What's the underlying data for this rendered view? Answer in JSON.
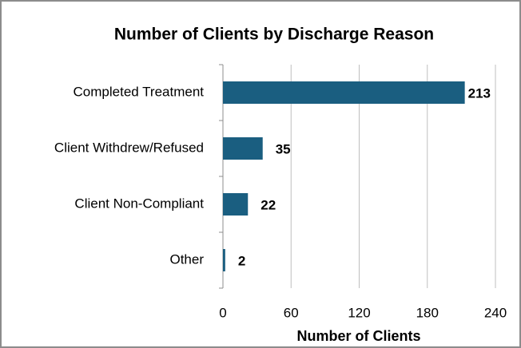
{
  "chart_data": {
    "type": "bar",
    "orientation": "horizontal",
    "title": "Number of Clients by Discharge Reason",
    "x_label": "Number of Clients",
    "categories": [
      "Completed Treatment",
      "Client Withdrew/Refused",
      "Client Non-Compliant",
      "Other"
    ],
    "values": [
      213,
      35,
      22,
      2
    ],
    "color": "#1a5e80",
    "xlim": [
      0,
      240
    ],
    "xticks": [
      0,
      60,
      120,
      180,
      240
    ],
    "grid": true
  }
}
